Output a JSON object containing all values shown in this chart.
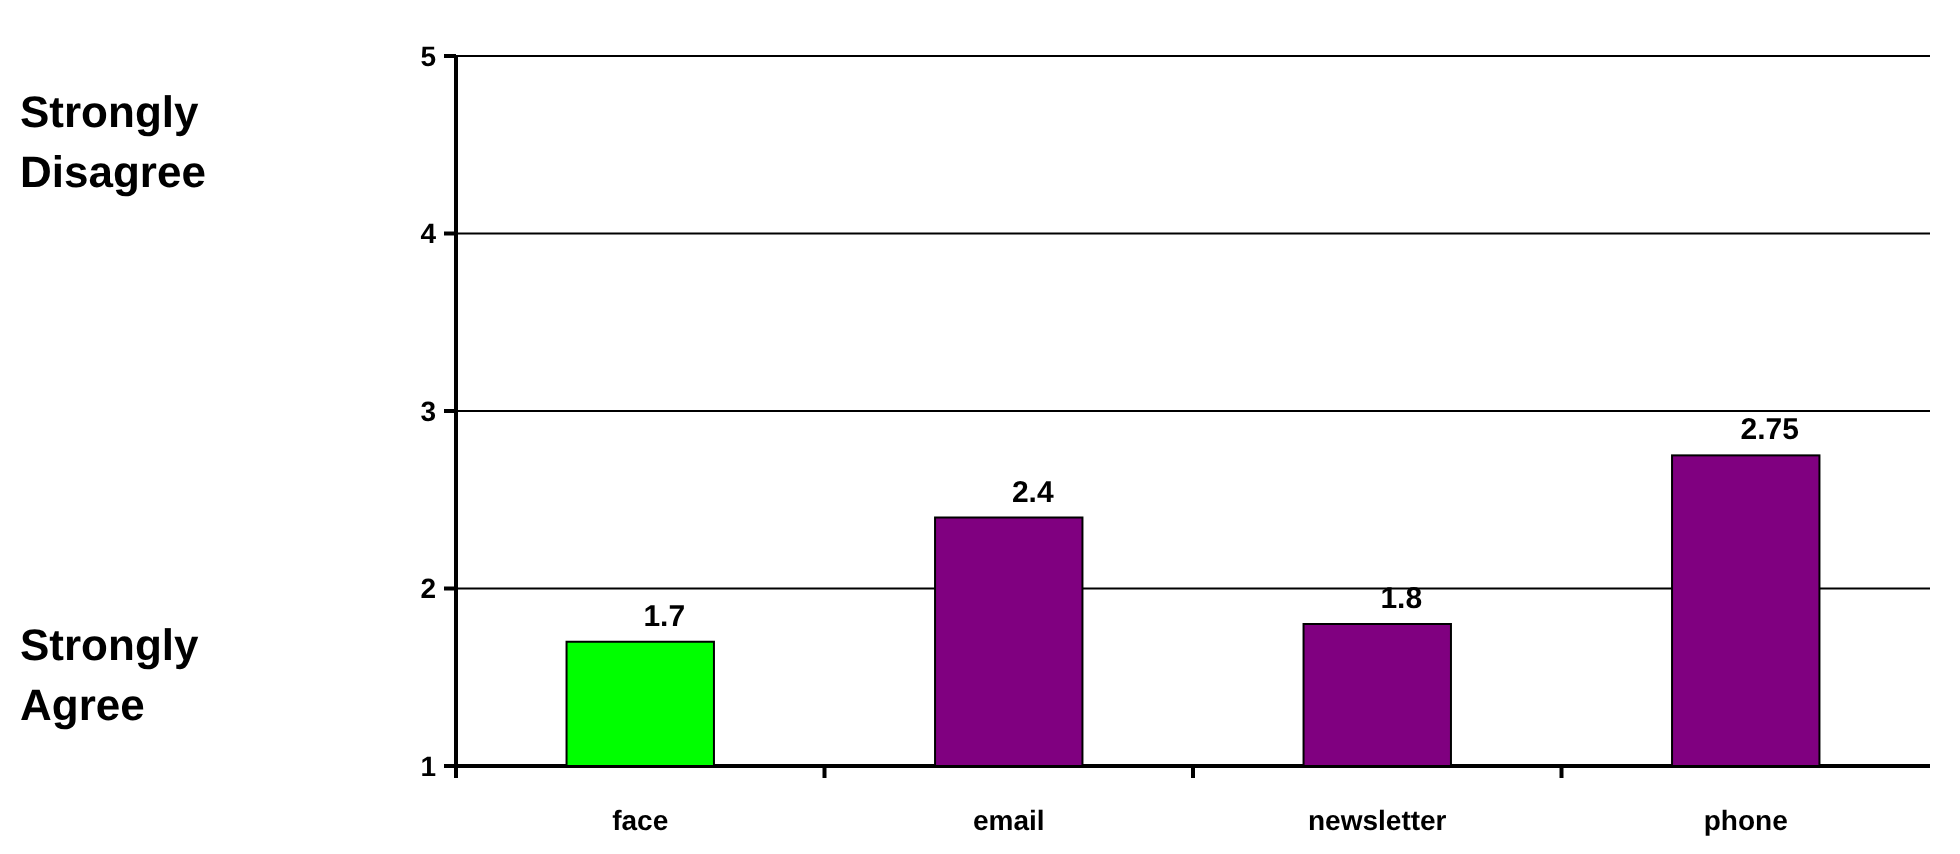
{
  "chart_data": {
    "type": "bar",
    "categories": [
      "face",
      "email",
      "newsletter",
      "phone"
    ],
    "values": [
      1.7,
      2.4,
      1.8,
      2.75
    ],
    "colors": [
      "#00ff00",
      "#800080",
      "#800080",
      "#800080"
    ],
    "ylim": [
      1,
      5
    ],
    "yticks": [
      1,
      2,
      3,
      4,
      5
    ],
    "grid": "y",
    "data_labels": true,
    "annotations": [
      "Strongly Disagree",
      "Strongly Agree"
    ]
  }
}
